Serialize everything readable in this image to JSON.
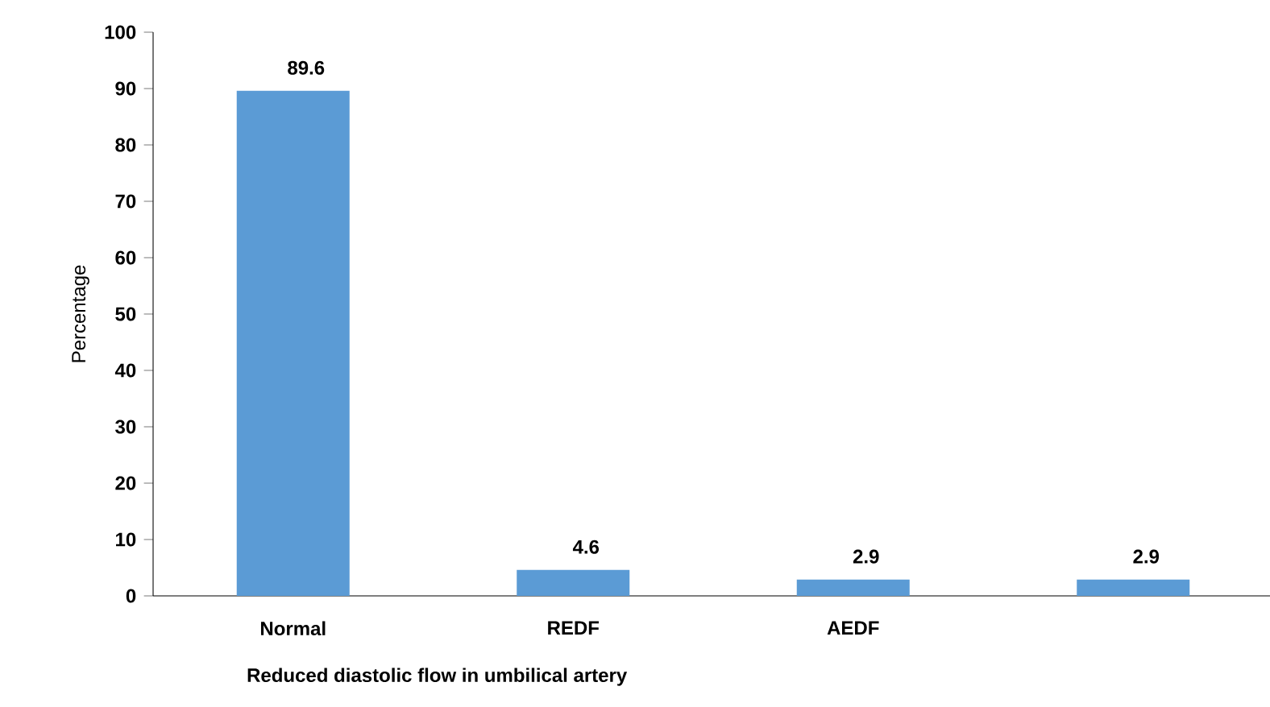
{
  "chart_data": {
    "type": "bar",
    "xlabel": "Reduced  diastolic  flow  in  umbilical  artery",
    "ylabel": "Percentage",
    "categories": [
      "Normal",
      "REDF",
      "AEDF",
      null
    ],
    "values": [
      89.6,
      4.6,
      2.9,
      2.9
    ],
    "color": "#5b9bd5",
    "data_labels": true,
    "grid": false,
    "ylim": [
      0,
      100
    ],
    "yticks": [
      0,
      10,
      20,
      30,
      40,
      50,
      60,
      70,
      80,
      90,
      100
    ]
  }
}
